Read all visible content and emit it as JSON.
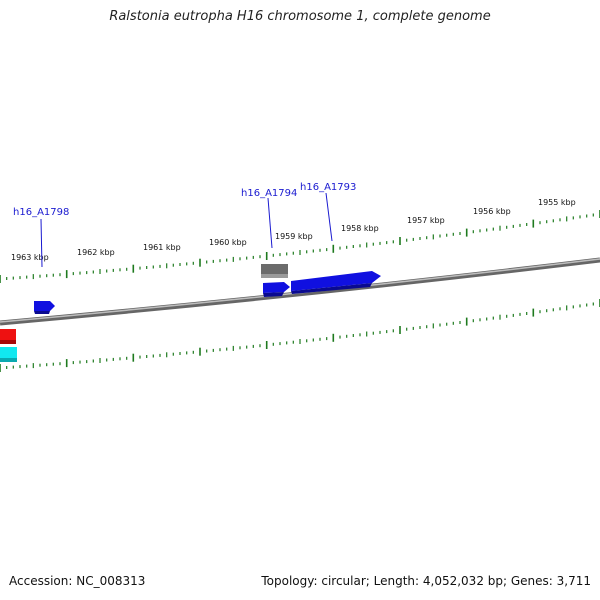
{
  "title": "Ralstonia eutropha H16 chromosome 1, complete genome",
  "footer": {
    "accession": "Accession: NC_008313",
    "summary": "Topology: circular; Length: 4,052,032 bp; Genes: 3,711"
  },
  "ruler_labels": [
    "1963 kbp",
    "1962 kbp",
    "1961 kbp",
    "1960 kbp",
    "1959 kbp",
    "1958 kbp",
    "1957 kbp",
    "1956 kbp",
    "1955 kbp"
  ],
  "gene_labels": [
    "h16_A1798",
    "h16_A1794",
    "h16_A1793"
  ],
  "colors": {
    "backbone": "#8a8a8a",
    "ticks": "#1e7a1e",
    "forward_gene": "#1010e0",
    "pseudo_gene": "#707070",
    "red_feature": "#ee1111",
    "cyan_feature": "#11e8f0",
    "label_color": "#1a1ad0"
  }
}
